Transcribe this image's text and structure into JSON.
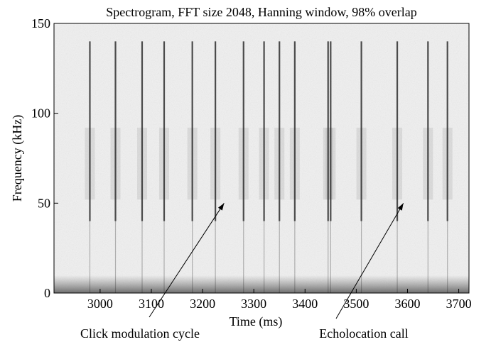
{
  "chart_data": {
    "type": "heatmap",
    "title": "Spectrogram, FFT size 2048, Hanning window, 98% overlap",
    "xlabel": "Time (ms)",
    "ylabel": "Frequency (kHz)",
    "xlim": [
      2910,
      3720
    ],
    "ylim": [
      0,
      150
    ],
    "x_ticks": [
      3000,
      3100,
      3200,
      3300,
      3400,
      3500,
      3600,
      3700
    ],
    "y_ticks": [
      0,
      50,
      100,
      150
    ],
    "click_times_ms": [
      2980,
      3030,
      3082,
      3125,
      3180,
      3225,
      3280,
      3320,
      3350,
      3380,
      3445,
      3450,
      3510,
      3580,
      3640,
      3678
    ],
    "annotations": [
      {
        "text": "Click modulation cycle",
        "points_to": {
          "x": 3242,
          "y": 50
        }
      },
      {
        "text": "Echolocation call",
        "points_to": {
          "x": 3592,
          "y": 50
        }
      }
    ],
    "grid": false
  },
  "colors": {
    "background": "#f0f0f0",
    "click": "#1e1e1e",
    "frame": "#000000"
  }
}
